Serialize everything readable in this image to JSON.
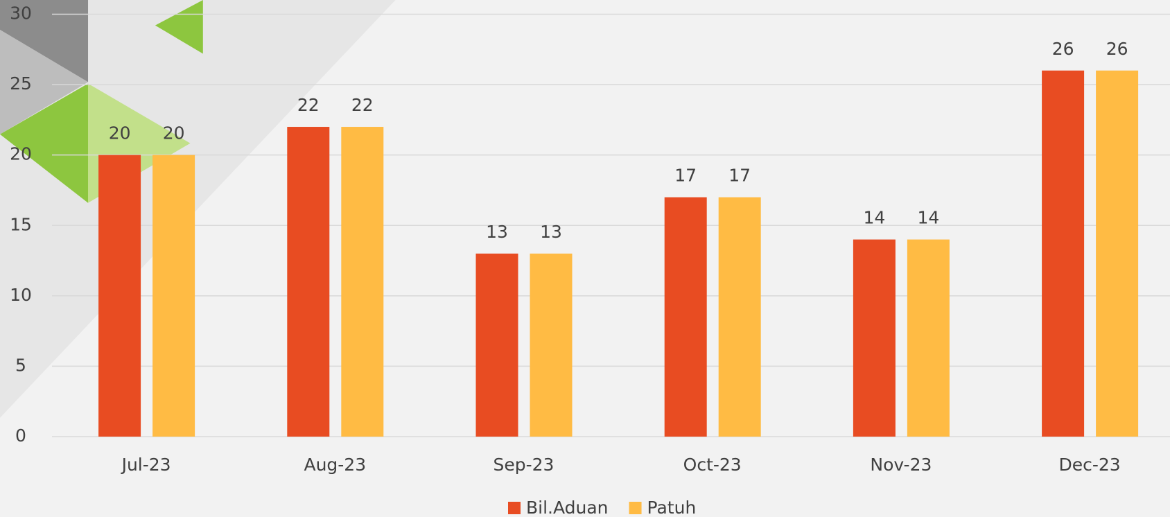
{
  "chart_data": {
    "type": "bar",
    "categories": [
      "Jul-23",
      "Aug-23",
      "Sep-23",
      "Oct-23",
      "Nov-23",
      "Dec-23"
    ],
    "series": [
      {
        "name": "Bil.Aduan",
        "color": "#e84c22",
        "values": [
          20,
          22,
          13,
          17,
          14,
          26
        ]
      },
      {
        "name": "Patuh",
        "color": "#ffbb44",
        "values": [
          20,
          22,
          13,
          17,
          14,
          26
        ]
      }
    ],
    "ylim": [
      0,
      30
    ],
    "yticks": [
      0,
      5,
      10,
      15,
      20,
      25,
      30
    ],
    "grid": true,
    "legend": "bottom"
  }
}
